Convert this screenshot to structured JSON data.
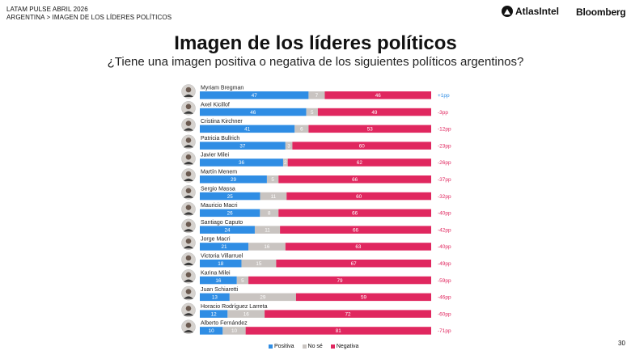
{
  "header": {
    "line1": "LATAM PULSE ABRIL 2026",
    "line2": "ARGENTINA > IMAGEN DE LOS LÍDERES POLÍTICOS"
  },
  "logos": {
    "atlas": "AtlasIntel",
    "bloomberg": "Bloomberg"
  },
  "page_number": "30",
  "colors": {
    "positiva": "#2f8de4",
    "nose": "#c9c4c1",
    "negativa": "#e0275f"
  },
  "chart_data": {
    "type": "bar",
    "orientation": "horizontal",
    "stacked": true,
    "title": "Imagen de los líderes políticos",
    "subtitle": "¿Tiene una imagen positiva o negativa de los siguientes políticos argentinos?",
    "categories": [
      "Myriam Bregman",
      "Axel Kicillof",
      "Cristina Kirchner",
      "Patricia Bullrich",
      "Javier Milei",
      "Martín Menem",
      "Sergio Massa",
      "Mauricio Macri",
      "Santiago Caputo",
      "Jorge Macri",
      "Victoria Villarruel",
      "Karina Milei",
      "Juan Schiaretti",
      "Horacio Rodríguez Larreta",
      "Alberto Fernández"
    ],
    "series": [
      {
        "name": "Positiva",
        "values": [
          47,
          46,
          41,
          37,
          36,
          29,
          25,
          26,
          24,
          21,
          18,
          16,
          13,
          12,
          10
        ]
      },
      {
        "name": "No sé",
        "values": [
          7,
          5,
          6,
          3,
          2,
          5,
          11,
          8,
          11,
          16,
          15,
          5,
          29,
          16,
          10
        ]
      },
      {
        "name": "Negativa",
        "values": [
          46,
          49,
          53,
          60,
          62,
          66,
          60,
          66,
          66,
          63,
          67,
          79,
          59,
          72,
          81
        ]
      }
    ],
    "differences": [
      "+1pp",
      "-3pp",
      "-12pp",
      "-23pp",
      "-26pp",
      "-37pp",
      "-32pp",
      "-40pp",
      "-42pp",
      "-40pp",
      "-49pp",
      "-59pp",
      "-46pp",
      "-60pp",
      "-71pp"
    ],
    "legend": [
      "Positiva",
      "No sé",
      "Negativa"
    ],
    "legend_position": "bottom"
  }
}
